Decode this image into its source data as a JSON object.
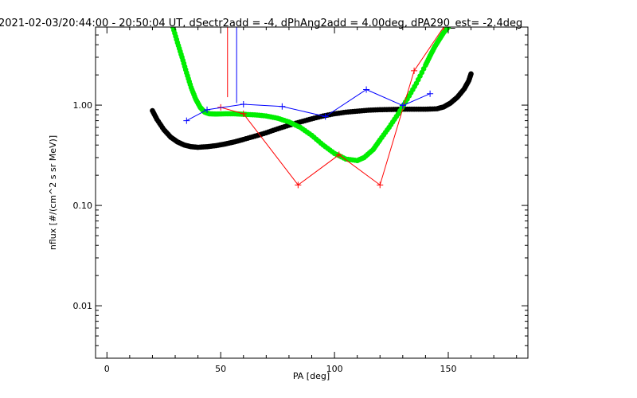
{
  "chart_data": {
    "type": "line",
    "title": "2021-02-03/20:44:00 - 20:50:04 UT, dSectr2add = -4, dPhAng2add = 4.00deg, dPA290_est=  -2.4deg",
    "xlabel": "PA [deg]",
    "ylabel": "nflux [#/(cm^2 s sr MeV)]",
    "xlim": [
      -5,
      185
    ],
    "ylim": [
      0.003,
      6.0
    ],
    "yscale": "log",
    "grid": false,
    "x_ticks": [
      {
        "value": 0,
        "label": "0"
      },
      {
        "value": 50,
        "label": "50"
      },
      {
        "value": 100,
        "label": "100"
      },
      {
        "value": 150,
        "label": "150"
      }
    ],
    "y_ticks": [
      {
        "value": 0.01,
        "label": "0.01"
      },
      {
        "value": 0.1,
        "label": "0.10"
      },
      {
        "value": 1.0,
        "label": "1.00"
      }
    ],
    "series": [
      {
        "style": "dots",
        "color": "#000000",
        "x": [
          20,
          22,
          25,
          28,
          31,
          34,
          37,
          40,
          44,
          48,
          52,
          56,
          60,
          65,
          70,
          75,
          80,
          85,
          90,
          95,
          100,
          105,
          110,
          115,
          120,
          125,
          130,
          135,
          140,
          145,
          148,
          151,
          154,
          157,
          159,
          160
        ],
        "y": [
          0.88,
          0.72,
          0.57,
          0.48,
          0.43,
          0.4,
          0.385,
          0.38,
          0.385,
          0.395,
          0.41,
          0.43,
          0.455,
          0.49,
          0.53,
          0.58,
          0.63,
          0.68,
          0.73,
          0.78,
          0.82,
          0.85,
          0.87,
          0.89,
          0.9,
          0.905,
          0.91,
          0.91,
          0.91,
          0.92,
          0.96,
          1.05,
          1.2,
          1.45,
          1.75,
          2.05
        ]
      },
      {
        "style": "dots",
        "color": "#00ee00",
        "x": [
          29,
          31,
          33,
          35,
          37,
          39,
          41,
          43,
          45,
          48,
          52,
          56,
          60,
          65,
          70,
          75,
          80,
          85,
          90,
          95,
          100,
          105,
          110,
          113,
          117,
          120,
          124,
          128,
          132,
          136,
          140,
          142,
          144,
          146,
          148,
          150
        ],
        "y": [
          6.0,
          4.2,
          3.0,
          2.1,
          1.5,
          1.15,
          0.95,
          0.85,
          0.82,
          0.815,
          0.82,
          0.82,
          0.81,
          0.8,
          0.78,
          0.74,
          0.68,
          0.6,
          0.5,
          0.4,
          0.33,
          0.29,
          0.28,
          0.3,
          0.36,
          0.45,
          0.6,
          0.82,
          1.15,
          1.65,
          2.5,
          3.1,
          3.8,
          4.5,
          5.3,
          6.0
        ]
      },
      {
        "style": "line-markers",
        "color": "#ff0000",
        "x": [
          50,
          60,
          84,
          102,
          120,
          135,
          148
        ],
        "y": [
          0.95,
          0.82,
          0.16,
          0.32,
          0.16,
          2.2,
          6.0
        ]
      },
      {
        "style": "line-markers",
        "color": "#0000ff",
        "x": [
          35,
          44,
          60,
          77,
          96,
          114,
          130,
          142
        ],
        "y": [
          0.7,
          0.9,
          1.02,
          0.97,
          0.77,
          1.43,
          0.99,
          1.3
        ]
      },
      {
        "style": "spike",
        "color": "#ff0000",
        "x": [
          53,
          53
        ],
        "y": [
          1.2,
          6.0
        ]
      },
      {
        "style": "spike",
        "color": "#0000ff",
        "x": [
          57,
          57
        ],
        "y": [
          1.05,
          6.0
        ]
      }
    ]
  }
}
